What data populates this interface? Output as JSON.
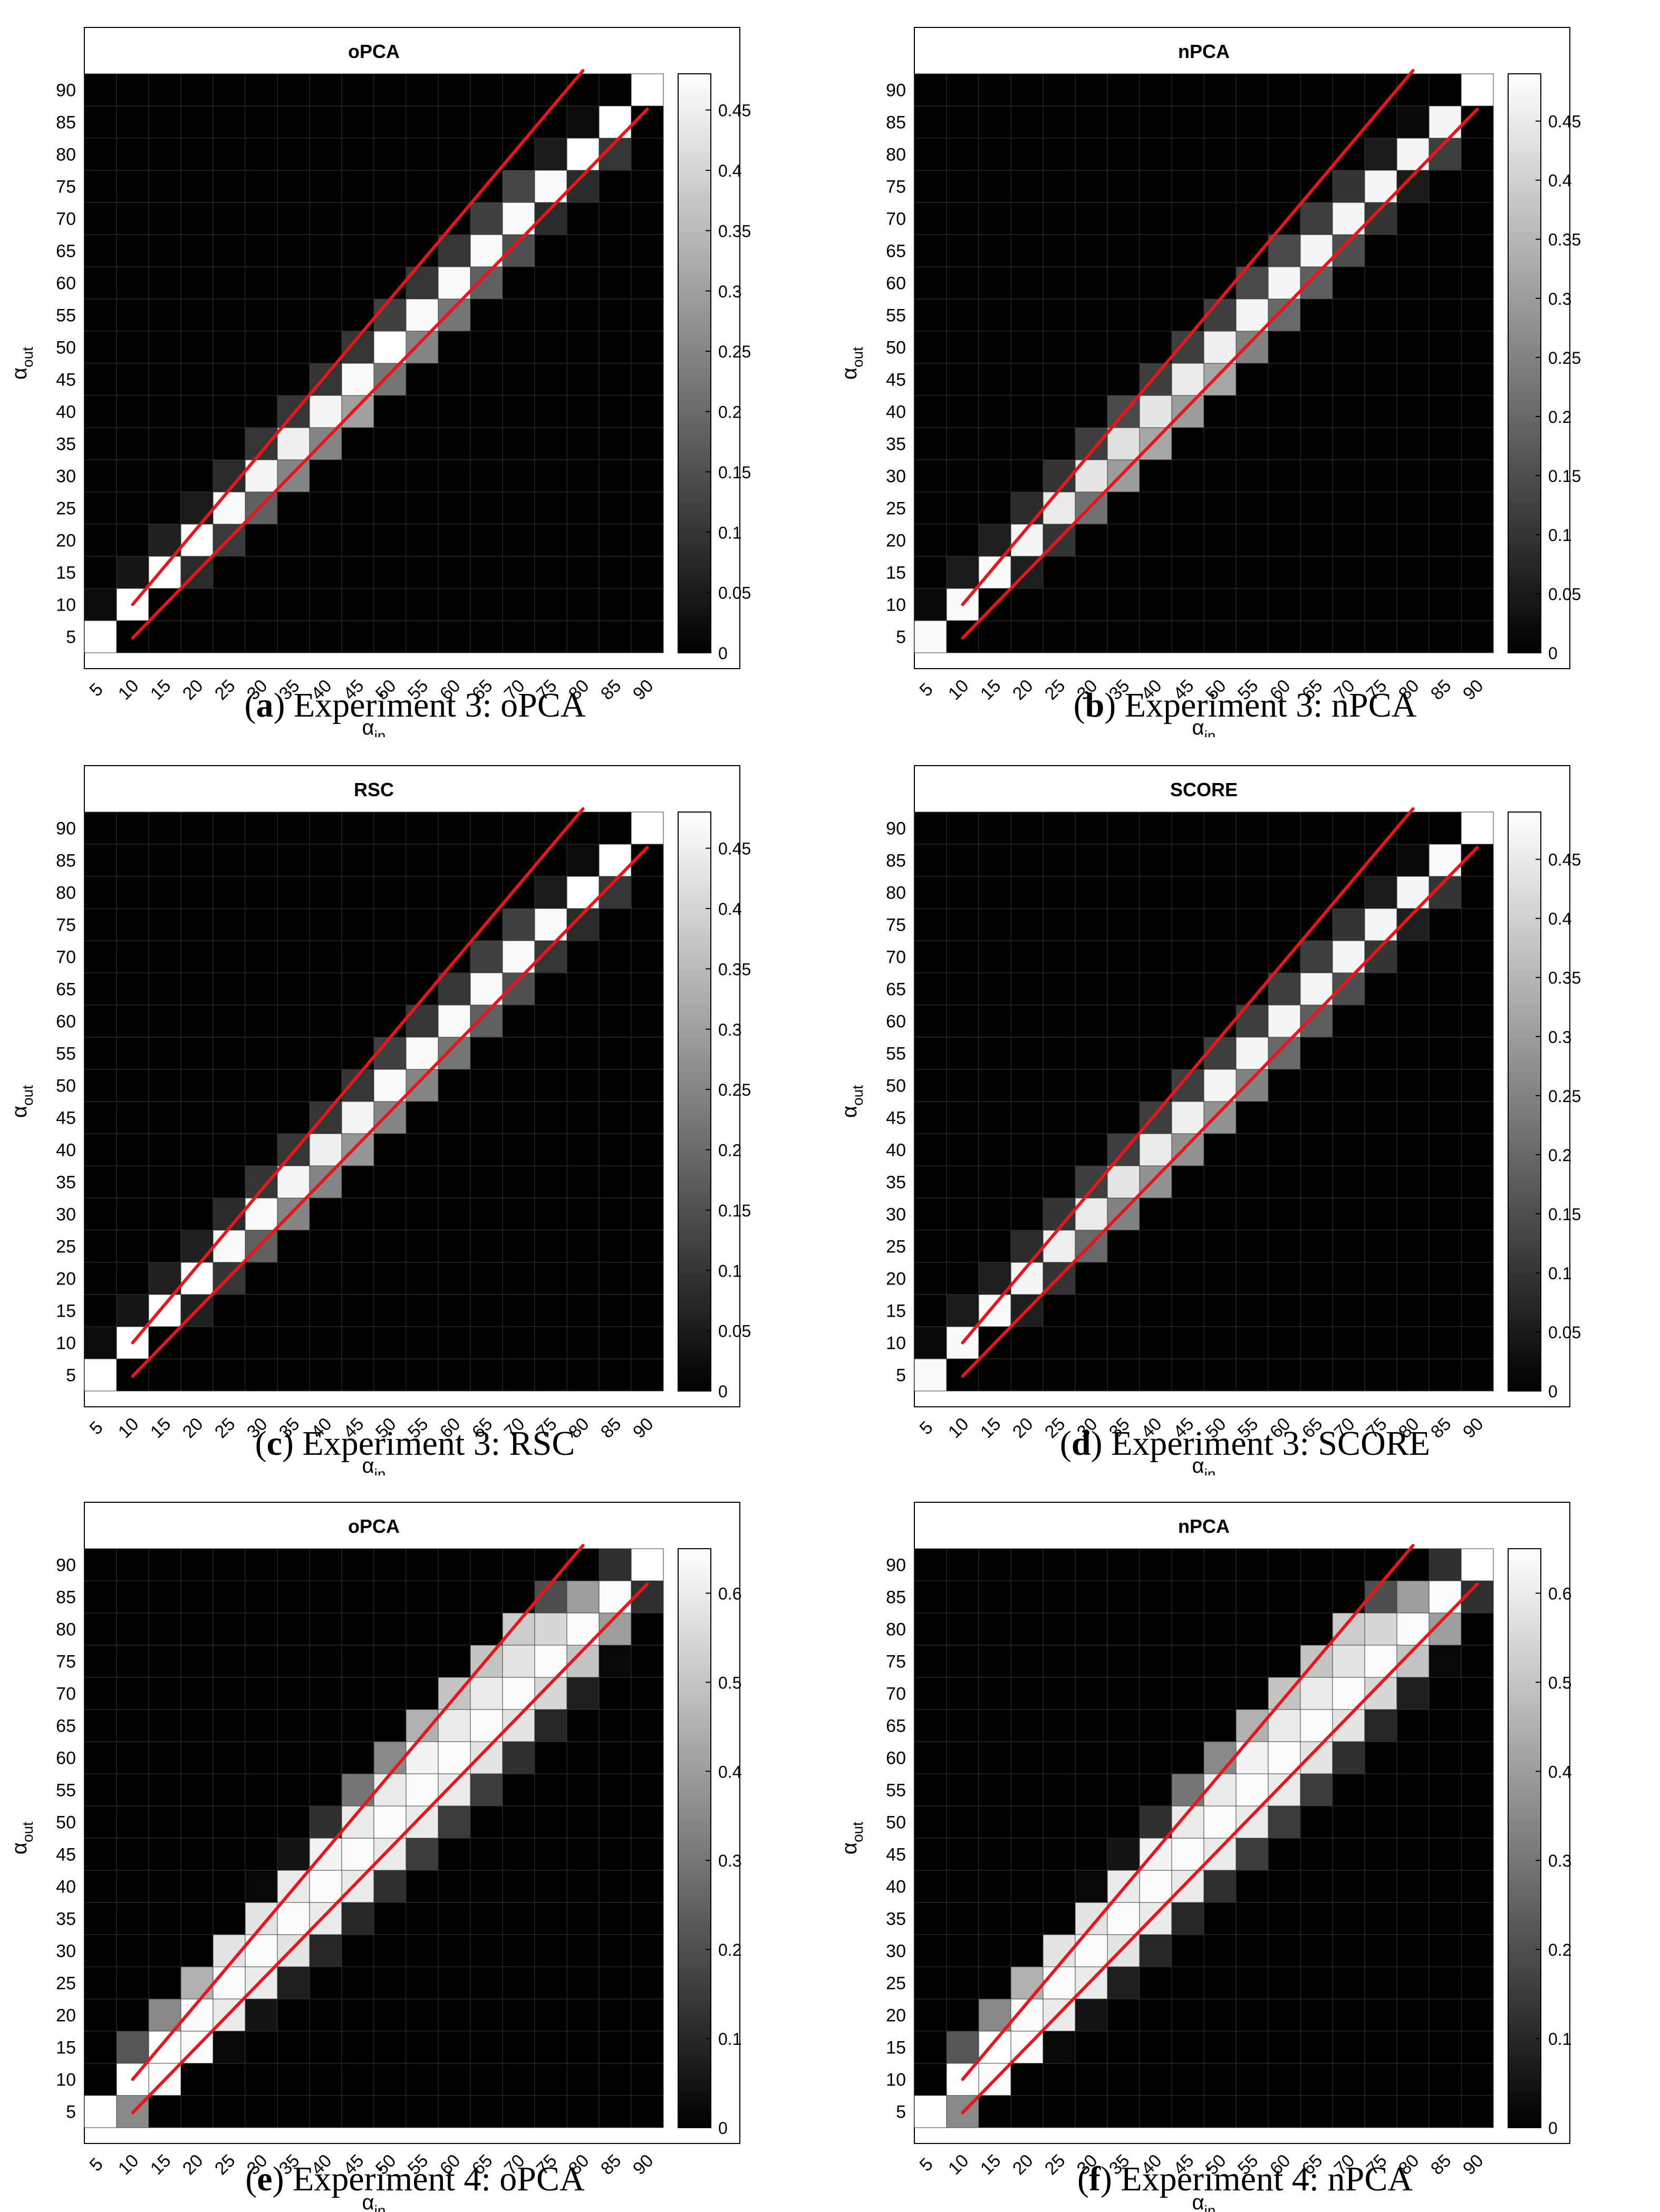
{
  "colors": {
    "line": "#e3171d",
    "background": "#000000",
    "axis": "#000000"
  },
  "panels": [
    {
      "caption_letter": "a",
      "caption_text": "Experiment 3: oPCA"
    },
    {
      "caption_letter": "b",
      "caption_text": "Experiment 3: nPCA"
    },
    {
      "caption_letter": "c",
      "caption_text": "Experiment 3: RSC"
    },
    {
      "caption_letter": "d",
      "caption_text": "Experiment 3: SCORE"
    },
    {
      "caption_letter": "e",
      "caption_text": "Experiment 4: oPCA"
    },
    {
      "caption_letter": "f",
      "caption_text": "Experiment 4: nPCA"
    }
  ],
  "chart_data": [
    {
      "type": "heatmap",
      "title": "oPCA",
      "xlabel": "α_in",
      "ylabel": "α_out",
      "x": [
        5,
        10,
        15,
        20,
        25,
        30,
        35,
        40,
        45,
        50,
        55,
        60,
        65,
        70,
        75,
        80,
        85,
        90
      ],
      "y": [
        5,
        10,
        15,
        20,
        25,
        30,
        35,
        40,
        45,
        50,
        55,
        60,
        65,
        70,
        75,
        80,
        85,
        90
      ],
      "colorbar_ticks": [
        "0",
        "0.05",
        "0.1",
        "0.15",
        "0.2",
        "0.25",
        "0.3",
        "0.35",
        "0.4",
        "0.45"
      ],
      "clim": [
        0,
        0.48
      ],
      "colormap": "gray",
      "diagonal_values": [
        0.48,
        0.48,
        0.48,
        0.48,
        0.47,
        0.46,
        0.45,
        0.46,
        0.47,
        0.48,
        0.47,
        0.47,
        0.47,
        0.47,
        0.47,
        0.48,
        0.48,
        0.48
      ],
      "above_diagonal_values": [
        0.02,
        0.04,
        0.06,
        0.05,
        0.08,
        0.1,
        0.1,
        0.1,
        0.1,
        0.12,
        0.1,
        0.1,
        0.12,
        0.13,
        0.05,
        0.02,
        0.0
      ],
      "below_diagonal_values": [
        0.0,
        0.0,
        0.08,
        0.11,
        0.18,
        0.25,
        0.25,
        0.3,
        0.22,
        0.25,
        0.22,
        0.18,
        0.15,
        0.08,
        0.08,
        0.1,
        0.0
      ],
      "bounds": {
        "upper": [
          [
            10,
            10
          ],
          [
            80,
            93
          ]
        ],
        "lower": [
          [
            10,
            4.8
          ],
          [
            90,
            87
          ]
        ]
      }
    },
    {
      "type": "heatmap",
      "title": "nPCA",
      "xlabel": "α_in",
      "ylabel": "α_out",
      "x": [
        5,
        10,
        15,
        20,
        25,
        30,
        35,
        40,
        45,
        50,
        55,
        60,
        65,
        70,
        75,
        80,
        85,
        90
      ],
      "y": [
        5,
        10,
        15,
        20,
        25,
        30,
        35,
        40,
        45,
        50,
        55,
        60,
        65,
        70,
        75,
        80,
        85,
        90
      ],
      "colorbar_ticks": [
        "0",
        "0.05",
        "0.1",
        "0.15",
        "0.2",
        "0.25",
        "0.3",
        "0.35",
        "0.4",
        "0.45"
      ],
      "clim": [
        0,
        0.49
      ],
      "colormap": "gray",
      "diagonal_values": [
        0.48,
        0.48,
        0.48,
        0.47,
        0.45,
        0.44,
        0.43,
        0.44,
        0.45,
        0.46,
        0.47,
        0.47,
        0.47,
        0.47,
        0.47,
        0.47,
        0.47,
        0.49
      ],
      "above_diagonal_values": [
        0.02,
        0.05,
        0.06,
        0.08,
        0.1,
        0.12,
        0.14,
        0.12,
        0.12,
        0.12,
        0.14,
        0.14,
        0.12,
        0.1,
        0.05,
        0.02,
        0.0
      ],
      "below_diagonal_values": [
        0.0,
        0.0,
        0.06,
        0.1,
        0.22,
        0.3,
        0.32,
        0.3,
        0.32,
        0.25,
        0.2,
        0.18,
        0.15,
        0.1,
        0.05,
        0.12,
        0.0
      ],
      "bounds": {
        "upper": [
          [
            10,
            10
          ],
          [
            80,
            93
          ]
        ],
        "lower": [
          [
            10,
            4.8
          ],
          [
            90,
            87
          ]
        ]
      }
    },
    {
      "type": "heatmap",
      "title": "RSC",
      "xlabel": "α_in",
      "ylabel": "α_out",
      "x": [
        5,
        10,
        15,
        20,
        25,
        30,
        35,
        40,
        45,
        50,
        55,
        60,
        65,
        70,
        75,
        80,
        85,
        90
      ],
      "y": [
        5,
        10,
        15,
        20,
        25,
        30,
        35,
        40,
        45,
        50,
        55,
        60,
        65,
        70,
        75,
        80,
        85,
        90
      ],
      "colorbar_ticks": [
        "0",
        "0.05",
        "0.1",
        "0.15",
        "0.2",
        "0.25",
        "0.3",
        "0.35",
        "0.4",
        "0.45"
      ],
      "clim": [
        0,
        0.48
      ],
      "colormap": "gray",
      "diagonal_values": [
        0.48,
        0.48,
        0.48,
        0.48,
        0.47,
        0.47,
        0.46,
        0.45,
        0.46,
        0.47,
        0.47,
        0.47,
        0.47,
        0.47,
        0.47,
        0.48,
        0.48,
        0.48
      ],
      "above_diagonal_values": [
        0.02,
        0.04,
        0.06,
        0.06,
        0.08,
        0.1,
        0.1,
        0.1,
        0.1,
        0.12,
        0.1,
        0.1,
        0.12,
        0.12,
        0.05,
        0.02,
        0.0
      ],
      "below_diagonal_values": [
        0.0,
        0.0,
        0.06,
        0.1,
        0.18,
        0.25,
        0.25,
        0.28,
        0.25,
        0.25,
        0.22,
        0.18,
        0.15,
        0.1,
        0.08,
        0.1,
        0.0
      ],
      "bounds": {
        "upper": [
          [
            10,
            10
          ],
          [
            80,
            93
          ]
        ],
        "lower": [
          [
            10,
            4.8
          ],
          [
            90,
            87
          ]
        ]
      }
    },
    {
      "type": "heatmap",
      "title": "SCORE",
      "xlabel": "α_in",
      "ylabel": "α_out",
      "x": [
        5,
        10,
        15,
        20,
        25,
        30,
        35,
        40,
        45,
        50,
        55,
        60,
        65,
        70,
        75,
        80,
        85,
        90
      ],
      "y": [
        5,
        10,
        15,
        20,
        25,
        30,
        35,
        40,
        45,
        50,
        55,
        60,
        65,
        70,
        75,
        80,
        85,
        90
      ],
      "colorbar_ticks": [
        "0",
        "0.05",
        "0.1",
        "0.15",
        "0.2",
        "0.25",
        "0.3",
        "0.35",
        "0.4",
        "0.45"
      ],
      "clim": [
        0,
        0.49
      ],
      "colormap": "gray",
      "diagonal_values": [
        0.48,
        0.48,
        0.48,
        0.47,
        0.46,
        0.45,
        0.44,
        0.45,
        0.46,
        0.47,
        0.47,
        0.47,
        0.47,
        0.47,
        0.47,
        0.47,
        0.48,
        0.49
      ],
      "above_diagonal_values": [
        0.02,
        0.05,
        0.06,
        0.08,
        0.1,
        0.12,
        0.12,
        0.12,
        0.12,
        0.12,
        0.12,
        0.12,
        0.12,
        0.1,
        0.05,
        0.02,
        0.0
      ],
      "below_diagonal_values": [
        0.0,
        0.0,
        0.06,
        0.1,
        0.2,
        0.25,
        0.28,
        0.28,
        0.28,
        0.25,
        0.2,
        0.18,
        0.15,
        0.1,
        0.06,
        0.1,
        0.0
      ],
      "bounds": {
        "upper": [
          [
            10,
            10
          ],
          [
            80,
            93
          ]
        ],
        "lower": [
          [
            10,
            4.8
          ],
          [
            90,
            87
          ]
        ]
      }
    },
    {
      "type": "heatmap",
      "title": "oPCA",
      "xlabel": "α_in",
      "ylabel": "α_out",
      "x": [
        5,
        10,
        15,
        20,
        25,
        30,
        35,
        40,
        45,
        50,
        55,
        60,
        65,
        70,
        75,
        80,
        85,
        90
      ],
      "y": [
        5,
        10,
        15,
        20,
        25,
        30,
        35,
        40,
        45,
        50,
        55,
        60,
        65,
        70,
        75,
        80,
        85,
        90
      ],
      "colorbar_ticks": [
        "0",
        "0.1",
        "0.2",
        "0.3",
        "0.4",
        "0.5",
        "0.6"
      ],
      "clim": [
        0,
        0.65
      ],
      "colormap": "gray",
      "diagonal_values": [
        0.65,
        0.65,
        0.65,
        0.64,
        0.64,
        0.64,
        0.64,
        0.64,
        0.64,
        0.64,
        0.64,
        0.64,
        0.64,
        0.64,
        0.64,
        0.64,
        0.64,
        0.65
      ],
      "above_diagonal_values": [
        0.0,
        0.22,
        0.35,
        0.45,
        0.58,
        0.58,
        0.6,
        0.62,
        0.6,
        0.6,
        0.62,
        0.6,
        0.6,
        0.58,
        0.55,
        0.4,
        0.12
      ],
      "below_diagonal_values": [
        0.35,
        0.64,
        0.64,
        0.6,
        0.6,
        0.58,
        0.6,
        0.6,
        0.6,
        0.6,
        0.6,
        0.58,
        0.58,
        0.55,
        0.5,
        0.4,
        0.12
      ],
      "second_above_values": [
        0.0,
        0.0,
        0.0,
        0.0,
        0.0,
        0.02,
        0.05,
        0.12,
        0.3,
        0.35,
        0.45,
        0.5,
        0.5,
        0.52,
        0.2,
        0.0
      ],
      "second_below_values": [
        0.0,
        0.0,
        0.02,
        0.05,
        0.08,
        0.1,
        0.1,
        0.12,
        0.15,
        0.15,
        0.15,
        0.12,
        0.1,
        0.08,
        0.02,
        0.0
      ],
      "bounds": {
        "upper": [
          [
            10,
            10
          ],
          [
            80,
            93
          ]
        ],
        "lower": [
          [
            10,
            4.8
          ],
          [
            90,
            87
          ]
        ]
      }
    },
    {
      "type": "heatmap",
      "title": "nPCA",
      "xlabel": "α_in",
      "ylabel": "α_out",
      "x": [
        5,
        10,
        15,
        20,
        25,
        30,
        35,
        40,
        45,
        50,
        55,
        60,
        65,
        70,
        75,
        80,
        85,
        90
      ],
      "y": [
        5,
        10,
        15,
        20,
        25,
        30,
        35,
        40,
        45,
        50,
        55,
        60,
        65,
        70,
        75,
        80,
        85,
        90
      ],
      "colorbar_ticks": [
        "0",
        "0.1",
        "0.2",
        "0.3",
        "0.4",
        "0.5",
        "0.6"
      ],
      "clim": [
        0,
        0.65
      ],
      "colormap": "gray",
      "diagonal_values": [
        0.65,
        0.65,
        0.65,
        0.64,
        0.64,
        0.64,
        0.64,
        0.64,
        0.64,
        0.64,
        0.64,
        0.64,
        0.64,
        0.64,
        0.64,
        0.64,
        0.64,
        0.65
      ],
      "above_diagonal_values": [
        0.0,
        0.22,
        0.35,
        0.45,
        0.58,
        0.58,
        0.6,
        0.62,
        0.6,
        0.6,
        0.62,
        0.6,
        0.6,
        0.58,
        0.55,
        0.4,
        0.12
      ],
      "below_diagonal_values": [
        0.35,
        0.64,
        0.64,
        0.6,
        0.6,
        0.58,
        0.6,
        0.6,
        0.6,
        0.6,
        0.6,
        0.58,
        0.58,
        0.55,
        0.5,
        0.4,
        0.12
      ],
      "second_above_values": [
        0.0,
        0.0,
        0.0,
        0.0,
        0.0,
        0.02,
        0.05,
        0.12,
        0.3,
        0.35,
        0.45,
        0.5,
        0.5,
        0.52,
        0.2,
        0.0
      ],
      "second_below_values": [
        0.0,
        0.0,
        0.02,
        0.05,
        0.08,
        0.1,
        0.1,
        0.12,
        0.15,
        0.15,
        0.15,
        0.12,
        0.1,
        0.08,
        0.02,
        0.0
      ],
      "bounds": {
        "upper": [
          [
            10,
            10
          ],
          [
            80,
            93
          ]
        ],
        "lower": [
          [
            10,
            4.8
          ],
          [
            90,
            87
          ]
        ]
      }
    }
  ]
}
